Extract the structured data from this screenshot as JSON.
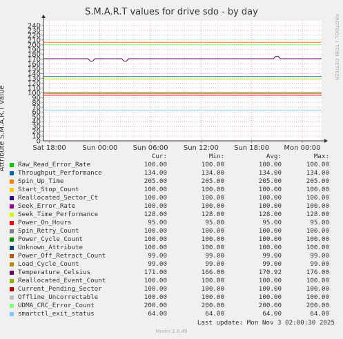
{
  "chart_data": {
    "type": "line",
    "title": "S.M.A.R.T values for drive sdo - by day",
    "ylabel": "Attribute S.M.A.R.T value",
    "ylim": [
      0,
      250
    ],
    "y_ticks": [
      0,
      10,
      20,
      30,
      40,
      50,
      60,
      70,
      80,
      90,
      100,
      110,
      120,
      130,
      140,
      150,
      160,
      170,
      180,
      190,
      200,
      210,
      220,
      230,
      240
    ],
    "x_ticks": [
      "Sat 18:00",
      "Sun 00:00",
      "Sun 06:00",
      "Sun 12:00",
      "Sun 18:00",
      "Mon 00:00"
    ],
    "x_tick_hours": [
      0,
      6,
      12,
      18,
      24,
      30
    ],
    "x_range_hours": [
      -0.7,
      32.3
    ],
    "grid": true,
    "side_label": "RRDTOOL / TOBI OETIKER",
    "columns": [
      "Cur:",
      "Min:",
      "Avg:",
      "Max:"
    ],
    "series": [
      {
        "name": "Raw_Read_Error_Rate",
        "color": "#00CC00",
        "cur": "100.00",
        "min": "100.00",
        "avg": "100.00",
        "max": "100.00",
        "value": 100
      },
      {
        "name": "Throughput_Performance",
        "color": "#0066B3",
        "cur": "134.00",
        "min": "134.00",
        "avg": "134.00",
        "max": "134.00",
        "value": 134
      },
      {
        "name": "Spin_Up_Time",
        "color": "#FF8000",
        "cur": "205.00",
        "min": "205.00",
        "avg": "205.00",
        "max": "205.00",
        "value": 205
      },
      {
        "name": "Start_Stop_Count",
        "color": "#FFCC00",
        "cur": "100.00",
        "min": "100.00",
        "avg": "100.00",
        "max": "100.00",
        "value": 100
      },
      {
        "name": "Reallocated_Sector_Ct",
        "color": "#330099",
        "cur": "100.00",
        "min": "100.00",
        "avg": "100.00",
        "max": "100.00",
        "value": 100
      },
      {
        "name": "Seek_Error_Rate",
        "color": "#990099",
        "cur": "100.00",
        "min": "100.00",
        "avg": "100.00",
        "max": "100.00",
        "value": 100
      },
      {
        "name": "Seek_Time_Performance",
        "color": "#CCFF00",
        "cur": "128.00",
        "min": "128.00",
        "avg": "128.00",
        "max": "128.00",
        "value": 128
      },
      {
        "name": "Power_On_Hours",
        "color": "#FF0000",
        "cur": "95.00",
        "min": "95.00",
        "avg": "95.00",
        "max": "95.00",
        "value": 95
      },
      {
        "name": "Spin_Retry_Count",
        "color": "#808080",
        "cur": "100.00",
        "min": "100.00",
        "avg": "100.00",
        "max": "100.00",
        "value": 100
      },
      {
        "name": "Power_Cycle_Count",
        "color": "#008F00",
        "cur": "100.00",
        "min": "100.00",
        "avg": "100.00",
        "max": "100.00",
        "value": 100
      },
      {
        "name": "Unknown_Attribute",
        "color": "#00487D",
        "cur": "100.00",
        "min": "100.00",
        "avg": "100.00",
        "max": "100.00",
        "value": 100
      },
      {
        "name": "Power_Off_Retract_Count",
        "color": "#B35A00",
        "cur": "99.00",
        "min": "99.00",
        "avg": "99.00",
        "max": "99.00",
        "value": 99
      },
      {
        "name": "Load_Cycle_Count",
        "color": "#B38F00",
        "cur": "99.00",
        "min": "99.00",
        "avg": "99.00",
        "max": "99.00",
        "value": 99
      },
      {
        "name": "Temperature_Celsius",
        "color": "#6B006B",
        "cur": "171.00",
        "min": "166.00",
        "avg": "170.92",
        "max": "176.00",
        "value": 171,
        "dips": [
          {
            "hour": 5.0,
            "value": 166
          },
          {
            "hour": 9.0,
            "value": 166
          },
          {
            "hour": 27.0,
            "value": 176
          }
        ]
      },
      {
        "name": "Reallocated_Event_Count",
        "color": "#8FB300",
        "cur": "100.00",
        "min": "100.00",
        "avg": "100.00",
        "max": "100.00",
        "value": 100
      },
      {
        "name": "Current_Pending_Sector",
        "color": "#B30000",
        "cur": "100.00",
        "min": "100.00",
        "avg": "100.00",
        "max": "100.00",
        "value": 100
      },
      {
        "name": "Offline_Uncorrectable",
        "color": "#BEBEBE",
        "cur": "100.00",
        "min": "100.00",
        "avg": "100.00",
        "max": "100.00",
        "value": 100
      },
      {
        "name": "UDMA_CRC_Error_Count",
        "color": "#80FF80",
        "cur": "200.00",
        "min": "200.00",
        "avg": "200.00",
        "max": "200.00",
        "value": 200
      },
      {
        "name": "smartctl_exit_status",
        "color": "#80C9FF",
        "cur": "64.00",
        "min": "64.00",
        "avg": "64.00",
        "max": "64.00",
        "value": 64
      }
    ]
  },
  "footer": {
    "last_update": "Last update: Mon Nov  3 02:00:30 2025",
    "munin_version": "Munin 2.0.49"
  }
}
